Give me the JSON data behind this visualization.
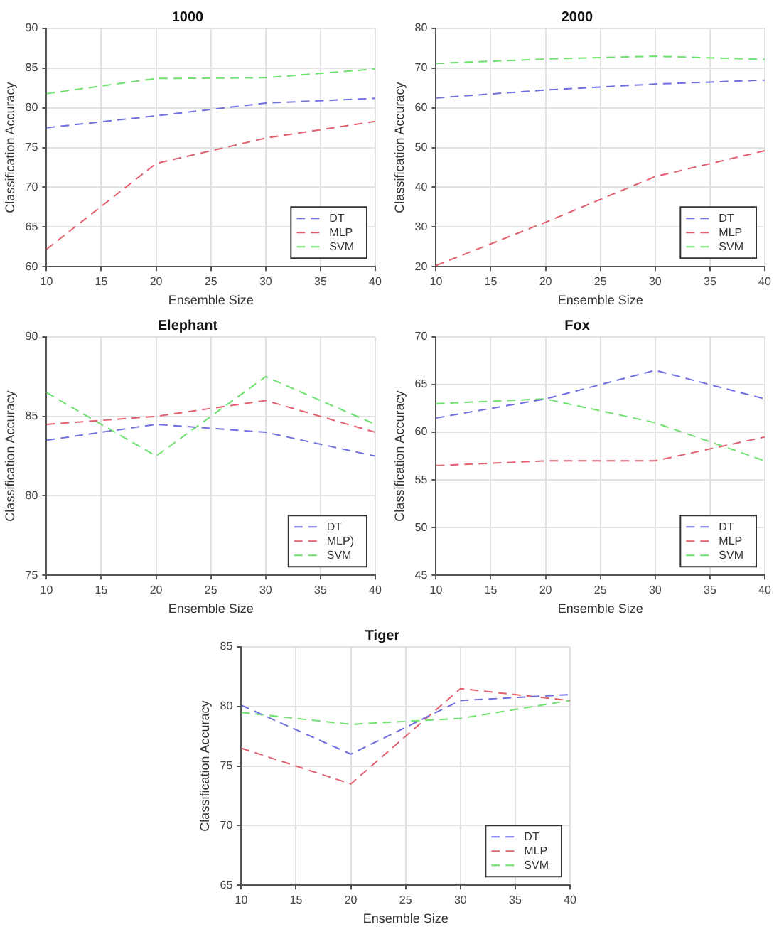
{
  "chart_data": [
    {
      "type": "line",
      "title": "1000",
      "xlabel": "Ensemble Size",
      "ylabel": "Classification Accuracy",
      "x": [
        10,
        20,
        30,
        40
      ],
      "xlim": [
        10,
        40
      ],
      "xticks": [
        10,
        15,
        20,
        25,
        30,
        35,
        40
      ],
      "ylim": [
        60,
        90
      ],
      "yticks": [
        60,
        65,
        70,
        75,
        80,
        85,
        90
      ],
      "grid": true,
      "legend": "bottom right",
      "marker": "none",
      "line_style": "dashed",
      "series": [
        {
          "name": "DT",
          "color": "#7070e0",
          "values": [
            77.5,
            79,
            80.6,
            81.2
          ]
        },
        {
          "name": "MLP",
          "color": "#e06070",
          "values": [
            62.2,
            73,
            76.2,
            78.3
          ]
        },
        {
          "name": "SVM",
          "color": "#70e070",
          "values": [
            81.8,
            83.7,
            83.8,
            84.9
          ]
        }
      ]
    },
    {
      "type": "line",
      "title": "2000",
      "xlabel": "Ensemble Size",
      "ylabel": "Classification Accuracy",
      "x": [
        10,
        20,
        30,
        40
      ],
      "xlim": [
        10,
        40
      ],
      "xticks": [
        10,
        15,
        20,
        25,
        30,
        35,
        40
      ],
      "ylim": [
        20,
        80
      ],
      "yticks": [
        20,
        30,
        40,
        50,
        60,
        70,
        80
      ],
      "grid": true,
      "legend": "bottom right",
      "marker": "none",
      "line_style": "dashed",
      "series": [
        {
          "name": "DT",
          "color": "#7070e0",
          "values": [
            62.5,
            64.5,
            66,
            67
          ]
        },
        {
          "name": "MLP",
          "color": "#e06070",
          "values": [
            20.3,
            31.2,
            42.7,
            49.2
          ]
        },
        {
          "name": "SVM",
          "color": "#70e070",
          "values": [
            71.2,
            72.3,
            73,
            72.2
          ]
        }
      ]
    },
    {
      "type": "line",
      "title": "Elephant",
      "xlabel": "Ensemble Size",
      "ylabel": "Classification Accuracy",
      "x": [
        10,
        20,
        30,
        40
      ],
      "xlim": [
        10,
        40
      ],
      "xticks": [
        10,
        15,
        20,
        25,
        30,
        35,
        40
      ],
      "ylim": [
        75,
        90
      ],
      "yticks": [
        75,
        80,
        85,
        90
      ],
      "grid": true,
      "legend": "bottom right",
      "marker": "none",
      "line_style": "dashed",
      "series": [
        {
          "name": "DT",
          "color": "#7070e0",
          "values": [
            83.5,
            84.5,
            84,
            82.5
          ]
        },
        {
          "name": "MLP)",
          "color": "#e06070",
          "values": [
            84.5,
            85,
            86,
            84
          ]
        },
        {
          "name": "SVM",
          "color": "#70e070",
          "values": [
            86.5,
            82.5,
            87.5,
            84.5
          ]
        }
      ]
    },
    {
      "type": "line",
      "title": "Fox",
      "xlabel": "Ensemble Size",
      "ylabel": "Classification Accuracy",
      "x": [
        10,
        20,
        30,
        40
      ],
      "xlim": [
        10,
        40
      ],
      "xticks": [
        10,
        15,
        20,
        25,
        30,
        35,
        40
      ],
      "ylim": [
        45,
        70
      ],
      "yticks": [
        45,
        50,
        55,
        60,
        65,
        70
      ],
      "grid": true,
      "legend": "bottom right",
      "marker": "none",
      "line_style": "dashed",
      "series": [
        {
          "name": "DT",
          "color": "#7070e0",
          "values": [
            61.5,
            63.5,
            66.5,
            63.5
          ]
        },
        {
          "name": "MLP",
          "color": "#e06070",
          "values": [
            56.5,
            57,
            57,
            59.5
          ]
        },
        {
          "name": "SVM",
          "color": "#70e070",
          "values": [
            63,
            63.5,
            61,
            57
          ]
        }
      ]
    },
    {
      "type": "line",
      "title": "Tiger",
      "xlabel": "Ensemble Size",
      "ylabel": "Classification Accuracy",
      "x": [
        10,
        20,
        30,
        40
      ],
      "xlim": [
        10,
        40
      ],
      "xticks": [
        10,
        15,
        20,
        25,
        30,
        35,
        40
      ],
      "ylim": [
        65,
        85
      ],
      "yticks": [
        65,
        70,
        75,
        80,
        85
      ],
      "grid": true,
      "legend": "bottom right",
      "marker": "none",
      "line_style": "dashed",
      "series": [
        {
          "name": "DT",
          "color": "#7070e0",
          "values": [
            80.1,
            76,
            80.5,
            81
          ]
        },
        {
          "name": "MLP",
          "color": "#e06070",
          "values": [
            76.5,
            73.5,
            81.5,
            80.5
          ]
        },
        {
          "name": "SVM",
          "color": "#70e070",
          "values": [
            79.5,
            78.5,
            79,
            80.5
          ]
        }
      ]
    }
  ]
}
